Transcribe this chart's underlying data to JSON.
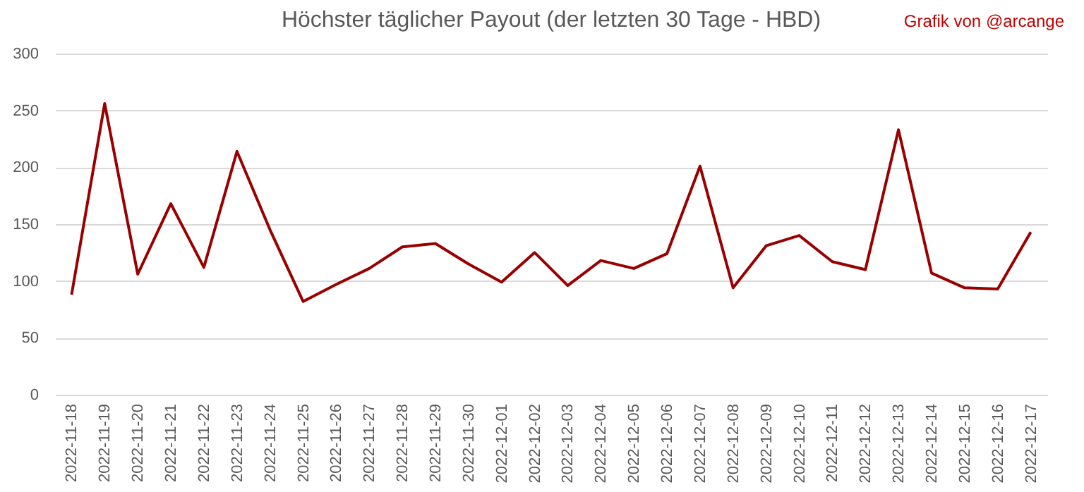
{
  "chart_data": {
    "type": "line",
    "title": "Höchster täglicher Payout (der letzten 30 Tage - HBD)",
    "annotations": [
      "Grafik von @arcange"
    ],
    "categories": [
      "2022-11-18",
      "2022-11-19",
      "2022-11-20",
      "2022-11-21",
      "2022-11-22",
      "2022-11-23",
      "2022-11-24",
      "2022-11-25",
      "2022-11-26",
      "2022-11-27",
      "2022-11-28",
      "2022-11-29",
      "2022-11-30",
      "2022-12-01",
      "2022-12-02",
      "2022-12-03",
      "2022-12-04",
      "2022-12-05",
      "2022-12-06",
      "2022-12-07",
      "2022-12-08",
      "2022-12-09",
      "2022-12-10",
      "2022-12-11",
      "2022-12-12",
      "2022-12-13",
      "2022-12-14",
      "2022-12-15",
      "2022-12-16",
      "2022-12-17"
    ],
    "series": [
      {
        "color": "#990000",
        "values": [
          88,
          256,
          106,
          168,
          112,
          214,
          145,
          82,
          97,
          111,
          130,
          133,
          115,
          99,
          125,
          96,
          118,
          111,
          124,
          201,
          94,
          131,
          140,
          117,
          110,
          233,
          107,
          94,
          93,
          143
        ]
      }
    ],
    "ylim": [
      0,
      300
    ],
    "yticks": [
      0,
      50,
      100,
      150,
      200,
      250,
      300
    ],
    "grid": "y",
    "legend": false,
    "marker": "none",
    "line_style": "solid"
  }
}
